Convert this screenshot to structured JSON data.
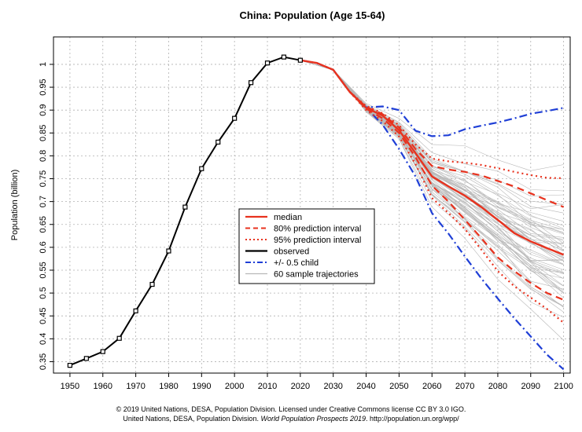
{
  "chart_data": {
    "type": "line",
    "title": "China: Population (Age 15-64)",
    "xlabel": "",
    "ylabel": "Population (billion)",
    "xlim": [
      1945,
      2102
    ],
    "ylim": [
      0.325,
      1.06
    ],
    "x_ticks": [
      1950,
      1960,
      1970,
      1980,
      1990,
      2000,
      2010,
      2020,
      2030,
      2040,
      2050,
      2060,
      2070,
      2080,
      2090,
      2100
    ],
    "y_ticks": [
      0.35,
      0.45,
      0.55,
      0.65,
      0.75,
      0.85,
      0.95
    ],
    "y_tick_labels": [
      "0.35",
      "0.45",
      "0.55",
      "0.65",
      "0.75",
      "0.85",
      "0.95"
    ],
    "y_ticks_extra": [
      0.4,
      0.5,
      0.6,
      0.7,
      0.8,
      0.9,
      1.0
    ],
    "y_tick_labels_extra": [
      "0.4",
      "0.5",
      "0.6",
      "0.7",
      "0.8",
      "0.9",
      "1"
    ],
    "grid": true,
    "observed": {
      "name": "observed",
      "x": [
        1950,
        1955,
        1960,
        1965,
        1970,
        1975,
        1980,
        1985,
        1990,
        1995,
        2000,
        2005,
        2010,
        2015,
        2020
      ],
      "y": [
        0.342,
        0.357,
        0.372,
        0.401,
        0.461,
        0.519,
        0.592,
        0.688,
        0.772,
        0.83,
        0.882,
        0.96,
        1.003,
        1.016,
        1.009
      ]
    },
    "series": [
      {
        "name": "median",
        "x": [
          2020,
          2025,
          2030,
          2035,
          2040,
          2045,
          2050,
          2055,
          2060,
          2065,
          2070,
          2075,
          2080,
          2085,
          2090,
          2095,
          2100
        ],
        "y": [
          1.009,
          1.003,
          0.988,
          0.94,
          0.905,
          0.888,
          0.856,
          0.806,
          0.755,
          0.733,
          0.713,
          0.688,
          0.66,
          0.631,
          0.613,
          0.598,
          0.584
        ]
      },
      {
        "name": "80% prediction interval (upper)",
        "x": [
          2035,
          2040,
          2045,
          2050,
          2055,
          2060,
          2065,
          2070,
          2075,
          2080,
          2085,
          2090,
          2095,
          2100
        ],
        "y": [
          0.94,
          0.907,
          0.891,
          0.862,
          0.815,
          0.778,
          0.77,
          0.765,
          0.757,
          0.745,
          0.733,
          0.718,
          0.703,
          0.688
        ]
      },
      {
        "name": "80% prediction interval (lower)",
        "x": [
          2035,
          2040,
          2045,
          2050,
          2055,
          2060,
          2065,
          2070,
          2075,
          2080,
          2085,
          2090,
          2095,
          2100
        ],
        "y": [
          0.94,
          0.903,
          0.882,
          0.85,
          0.797,
          0.735,
          0.7,
          0.66,
          0.62,
          0.578,
          0.548,
          0.522,
          0.5,
          0.485
        ]
      },
      {
        "name": "95% prediction interval (upper)",
        "x": [
          2035,
          2040,
          2045,
          2050,
          2055,
          2060,
          2065,
          2070,
          2075,
          2080,
          2085,
          2090,
          2095,
          2100
        ],
        "y": [
          0.94,
          0.909,
          0.893,
          0.867,
          0.825,
          0.794,
          0.788,
          0.785,
          0.78,
          0.773,
          0.765,
          0.758,
          0.752,
          0.751
        ]
      },
      {
        "name": "95% prediction interval (lower)",
        "x": [
          2035,
          2040,
          2045,
          2050,
          2055,
          2060,
          2065,
          2070,
          2075,
          2080,
          2085,
          2090,
          2095,
          2100
        ],
        "y": [
          0.94,
          0.9,
          0.876,
          0.842,
          0.782,
          0.708,
          0.675,
          0.64,
          0.595,
          0.548,
          0.515,
          0.49,
          0.465,
          0.435
        ]
      },
      {
        "name": "+/- 0.5 child (upper)",
        "x": [
          2020,
          2025,
          2030,
          2035,
          2040,
          2045,
          2050,
          2055,
          2060,
          2065,
          2070,
          2075,
          2080,
          2085,
          2090,
          2095,
          2100
        ],
        "y": [
          1.009,
          1.003,
          0.988,
          0.94,
          0.906,
          0.908,
          0.9,
          0.855,
          0.843,
          0.845,
          0.858,
          0.866,
          0.873,
          0.882,
          0.892,
          0.898,
          0.905
        ]
      },
      {
        "name": "+/- 0.5 child (lower)",
        "x": [
          2020,
          2025,
          2030,
          2035,
          2040,
          2045,
          2050,
          2055,
          2060,
          2065,
          2070,
          2075,
          2080,
          2085,
          2090,
          2095,
          2100
        ],
        "y": [
          1.009,
          1.003,
          0.988,
          0.94,
          0.905,
          0.868,
          0.815,
          0.755,
          0.675,
          0.63,
          0.58,
          0.532,
          0.488,
          0.445,
          0.405,
          0.365,
          0.333
        ]
      }
    ],
    "sample_trajectories": {
      "name": "60 sample trajectories",
      "count": 60,
      "x": [
        2020,
        2030,
        2040,
        2050,
        2060,
        2070,
        2080,
        2090,
        2100
      ],
      "median_path": [
        1.009,
        0.988,
        0.905,
        0.856,
        0.755,
        0.713,
        0.66,
        0.613,
        0.584
      ],
      "spread_path": [
        0,
        0,
        0.006,
        0.014,
        0.04,
        0.06,
        0.08,
        0.095,
        0.11
      ]
    },
    "legend": {
      "placement": "center",
      "entries": [
        {
          "label": "median",
          "color": "#e8321e",
          "style": "solid"
        },
        {
          "label": "80% prediction interval",
          "color": "#e8321e",
          "style": "dashed"
        },
        {
          "label": "95% prediction interval",
          "color": "#e8321e",
          "style": "dotted"
        },
        {
          "label": "observed",
          "color": "#000000",
          "style": "solid"
        },
        {
          "label": "+/- 0.5 child",
          "color": "#1f3fd6",
          "style": "dashdot"
        },
        {
          "label": "60 sample trajectories",
          "color": "#b8b8b8",
          "style": "solid"
        }
      ]
    },
    "colors": {
      "median": "#e8321e",
      "observed": "#000000",
      "child": "#1f3fd6",
      "samples": "#b8b8b8",
      "grid": "#b0b0b0"
    }
  },
  "footer": {
    "line1": "© 2019 United Nations, DESA, Population Division. Licensed under Creative Commons license CC BY 3.0 IGO.",
    "line2_prefix": "United Nations, DESA, Population Division. ",
    "line2_italic": "World Population Prospects 2019",
    "line2_suffix": ". http://population.un.org/wpp/"
  }
}
